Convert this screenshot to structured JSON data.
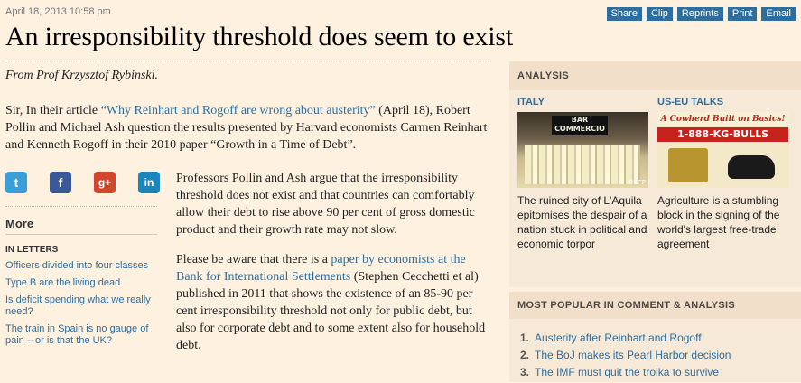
{
  "article": {
    "timestamp": "April 18, 2013 10:58 pm",
    "headline": "An irresponsibility threshold does seem to exist",
    "byline": "From Prof Krzysztof Rybinski.",
    "intro_before": "Sir, In their article ",
    "intro_link": "“Why Reinhart and Rogoff are wrong about austerity”",
    "intro_after": " (April 18), Robert Pollin and Michael Ash question the results presented by Harvard economists Carmen Reinhart and Kenneth Rogoff in their 2010 paper “Growth in a Time of Debt”.",
    "para1": "Professors Pollin and Ash argue that the irresponsibility threshold does not exist and that countries can comfortably allow their debt to rise above 90 per cent of gross domestic product and their growth rate may not slow.",
    "para2_before": "Please be aware that there is a ",
    "para2_link": "paper by economists at the Bank for International Settlements",
    "para2_after": " (Stephen Cecchetti et al) published in 2011 that shows the existence of an 85-90 per cent irresponsibility threshold not only for public debt, but also for corporate debt and to some extent also for household debt."
  },
  "tools": [
    "Share",
    "Clip",
    "Reprints",
    "Print",
    "Email"
  ],
  "share_icons": [
    {
      "name": "twitter",
      "glyph": "t",
      "color": "#3a9fd8"
    },
    {
      "name": "facebook",
      "glyph": "f",
      "color": "#3b5998"
    },
    {
      "name": "google-plus",
      "glyph": "g+",
      "color": "#d2472c"
    },
    {
      "name": "linkedin",
      "glyph": "in",
      "color": "#1b86bc"
    }
  ],
  "more": {
    "title": "More",
    "category": "IN LETTERS",
    "links": [
      "Officers divided into four classes",
      "Type B are the living dead",
      "Is deficit spending what we really need?",
      "The train in Spain is no gauge of pain – or is that the UK?"
    ]
  },
  "sidebar": {
    "analysis_title": "ANALYSIS",
    "stories": [
      {
        "kicker": "ITALY",
        "caption": "The ruined city of L'Aquila epitomises the despair of a nation stuck in political and economic torpor",
        "photo_sign": "BAR COMMERCIO",
        "photo_credit": "©AFP"
      },
      {
        "kicker": "US-EU TALKS",
        "caption": "Agriculture is a stumbling block in the signing of the world's largest free-trade agreement",
        "photo_sign": "A Cowherd Built on Basics!",
        "photo_phone": "1-888-KG-BULLS"
      }
    ],
    "popular_title": "MOST POPULAR IN COMMENT & ANALYSIS",
    "popular": [
      {
        "num": "1.",
        "title": "Austerity after Reinhart and Rogoff"
      },
      {
        "num": "2.",
        "title": "The BoJ makes its Pearl Harbor decision"
      },
      {
        "num": "3.",
        "title": "The IMF must quit the troika to survive"
      }
    ]
  },
  "colors": {
    "background": "#fff1e0",
    "link": "#2e6e9e",
    "tool_button": "#2e6e9e"
  }
}
